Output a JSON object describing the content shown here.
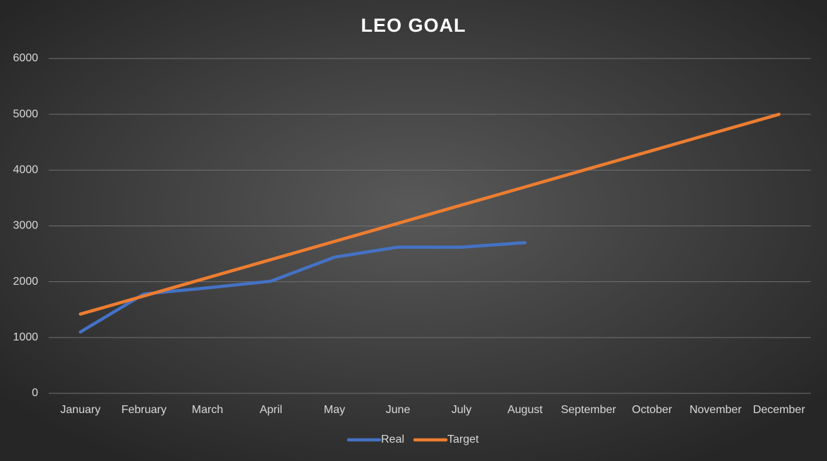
{
  "chart_data": {
    "type": "line",
    "title": "LEO GOAL",
    "categories": [
      "January",
      "February",
      "March",
      "April",
      "May",
      "June",
      "July",
      "August",
      "September",
      "October",
      "November",
      "December"
    ],
    "series": [
      {
        "name": "Real",
        "color": "#4472c4",
        "values": [
          1100,
          1780,
          1890,
          2010,
          2440,
          2620,
          2620,
          2700,
          null,
          null,
          null,
          null
        ]
      },
      {
        "name": "Target",
        "color": "#ed7d31",
        "values": [
          1420,
          1745,
          2071,
          2396,
          2722,
          3047,
          3373,
          3698,
          4024,
          4349,
          4675,
          5000
        ]
      }
    ],
    "ylim": [
      0,
      6000
    ],
    "yticks": [
      0,
      1000,
      2000,
      3000,
      4000,
      5000,
      6000
    ],
    "grid": true,
    "legend": "bottom"
  }
}
